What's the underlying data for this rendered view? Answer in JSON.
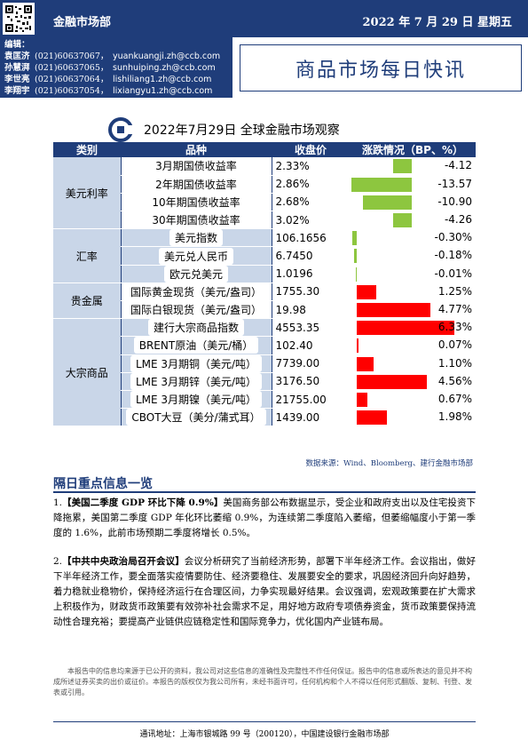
{
  "header": {
    "department": "金融市场部",
    "date": "2022 年 7 月 29 日  星期五"
  },
  "editors": {
    "title": "编辑：",
    "list": [
      {
        "name": "袁匡济",
        "phone": "(021)60637067，",
        "email": "yuankuangji.zh@ccb.com"
      },
      {
        "name": "孙慧湃",
        "phone": "(021)60637065，",
        "email": "sunhuiping.zh@ccb.com"
      },
      {
        "name": "李世亮",
        "phone": "(021)60637064，",
        "email": "lishiliang1.zh@ccb.com"
      },
      {
        "name": "李翔宇",
        "phone": "(021)60637054，",
        "email": "lixiangyu1.zh@ccb.com"
      }
    ]
  },
  "main_title": "商品市场每日快讯",
  "table_title": "2022年7月29日  全球金融市场观察",
  "table": {
    "headers": [
      "类别",
      "品种",
      "收盘价",
      "涨跌情况（BP、%）"
    ],
    "groups": [
      {
        "category": "美元利率",
        "rows": [
          {
            "item": "3月期国债收益率",
            "close": "2.33%",
            "change": "-4.12",
            "val": -4.12
          },
          {
            "item": "2年期国债收益率",
            "close": "2.86%",
            "change": "-13.57",
            "val": -13.57
          },
          {
            "item": "10年期国债收益率",
            "close": "2.68%",
            "change": "-10.90",
            "val": -10.9
          },
          {
            "item": "30年期国债收益率",
            "close": "3.02%",
            "change": "-4.26",
            "val": -4.26
          }
        ]
      },
      {
        "category": "汇率",
        "rows": [
          {
            "item": "美元指数",
            "close": "106.1656",
            "change": "-0.30%",
            "val": -0.3
          },
          {
            "item": "美元兑人民币",
            "close": "6.7450",
            "change": "-0.18%",
            "val": -0.18
          },
          {
            "item": "欧元兑美元",
            "close": "1.0196",
            "change": "-0.01%",
            "val": -0.01
          }
        ]
      },
      {
        "category": "贵金属",
        "rows": [
          {
            "item": "国际黄金现货（美元/盎司）",
            "close": "1755.30",
            "change": "1.25%",
            "val": 1.25
          },
          {
            "item": "国际白银现货（美元/盎司）",
            "close": "19.98",
            "change": "4.77%",
            "val": 4.77
          }
        ]
      },
      {
        "category": "大宗商品",
        "rows": [
          {
            "item": "建行大宗商品指数",
            "close": "4553.35",
            "change": "6.33%",
            "val": 6.33
          },
          {
            "item": "BRENT原油（美元/桶）",
            "close": "102.40",
            "change": "0.07%",
            "val": 0.07
          },
          {
            "item": "LME 3月期铜（美元/吨）",
            "close": "7739.00",
            "change": "1.10%",
            "val": 1.1
          },
          {
            "item": "LME 3月期锌（美元/吨）",
            "close": "3176.50",
            "change": "4.56%",
            "val": 4.56
          },
          {
            "item": "LME 3月期镍（美元/吨）",
            "close": "21755.00",
            "change": "0.67%",
            "val": 0.67
          },
          {
            "item": "CBOT大豆（美分/蒲式耳）",
            "close": "1439.00",
            "change": "1.98%",
            "val": 1.98
          }
        ]
      }
    ]
  },
  "source": "数据来源：Wind、Bloomberg、建行金融市场部",
  "section_title": "隔日重点信息一览",
  "news": [
    {
      "prefix": "1.",
      "head": "【美国二季度 GDP 环比下降 0.9%】",
      "body": "美国商务部公布数据显示，受企业和政府支出以及住宅投资下降拖累，美国第二季度 GDP 年化环比萎缩 0.9%，为连续第二季度陷入萎缩，但萎缩幅度小于第一季度的 1.6%，此前市场预期二季度将增长 0.5%。"
    },
    {
      "prefix": "2.",
      "head": "【中共中央政治局召开会议】",
      "body": "会议分析研究了当前经济形势，部署下半年经济工作。会议指出，做好下半年经济工作，要全面落实疫情要防住、经济要稳住、发展要安全的要求，巩固经济回升向好趋势，着力稳就业稳物价，保持经济运行在合理区间，力争实现最好结果。会议强调，宏观政策要在扩大需求上积极作为，财政货币政策要有效弥补社会需求不足，用好地方政府专项债券资金，货币政策要保持流动性合理充裕；要提高产业链供应链稳定性和国际竞争力，优化国内产业链布局。"
    }
  ],
  "disclaimer": "本报告中的信息均来源于已公开的资料，我公司对这些信息的准确性及完整性不作任何保证。报告中的信息或所表达的意见并不构成所述证券买卖的出价或征价。本报告的版权仅为我公司所有，未经书面许可，任何机构和个人不得以任何形式翻版、复制、刊登、发表或引用。",
  "footer": "通讯地址：上海市银城路 99 号（200120），中国建设银行金融市场部",
  "colors": {
    "navy": "#1f3d7a",
    "neg": "#8dc63f",
    "pos": "#ff0000",
    "cat_bg": "#c9d6e8"
  }
}
